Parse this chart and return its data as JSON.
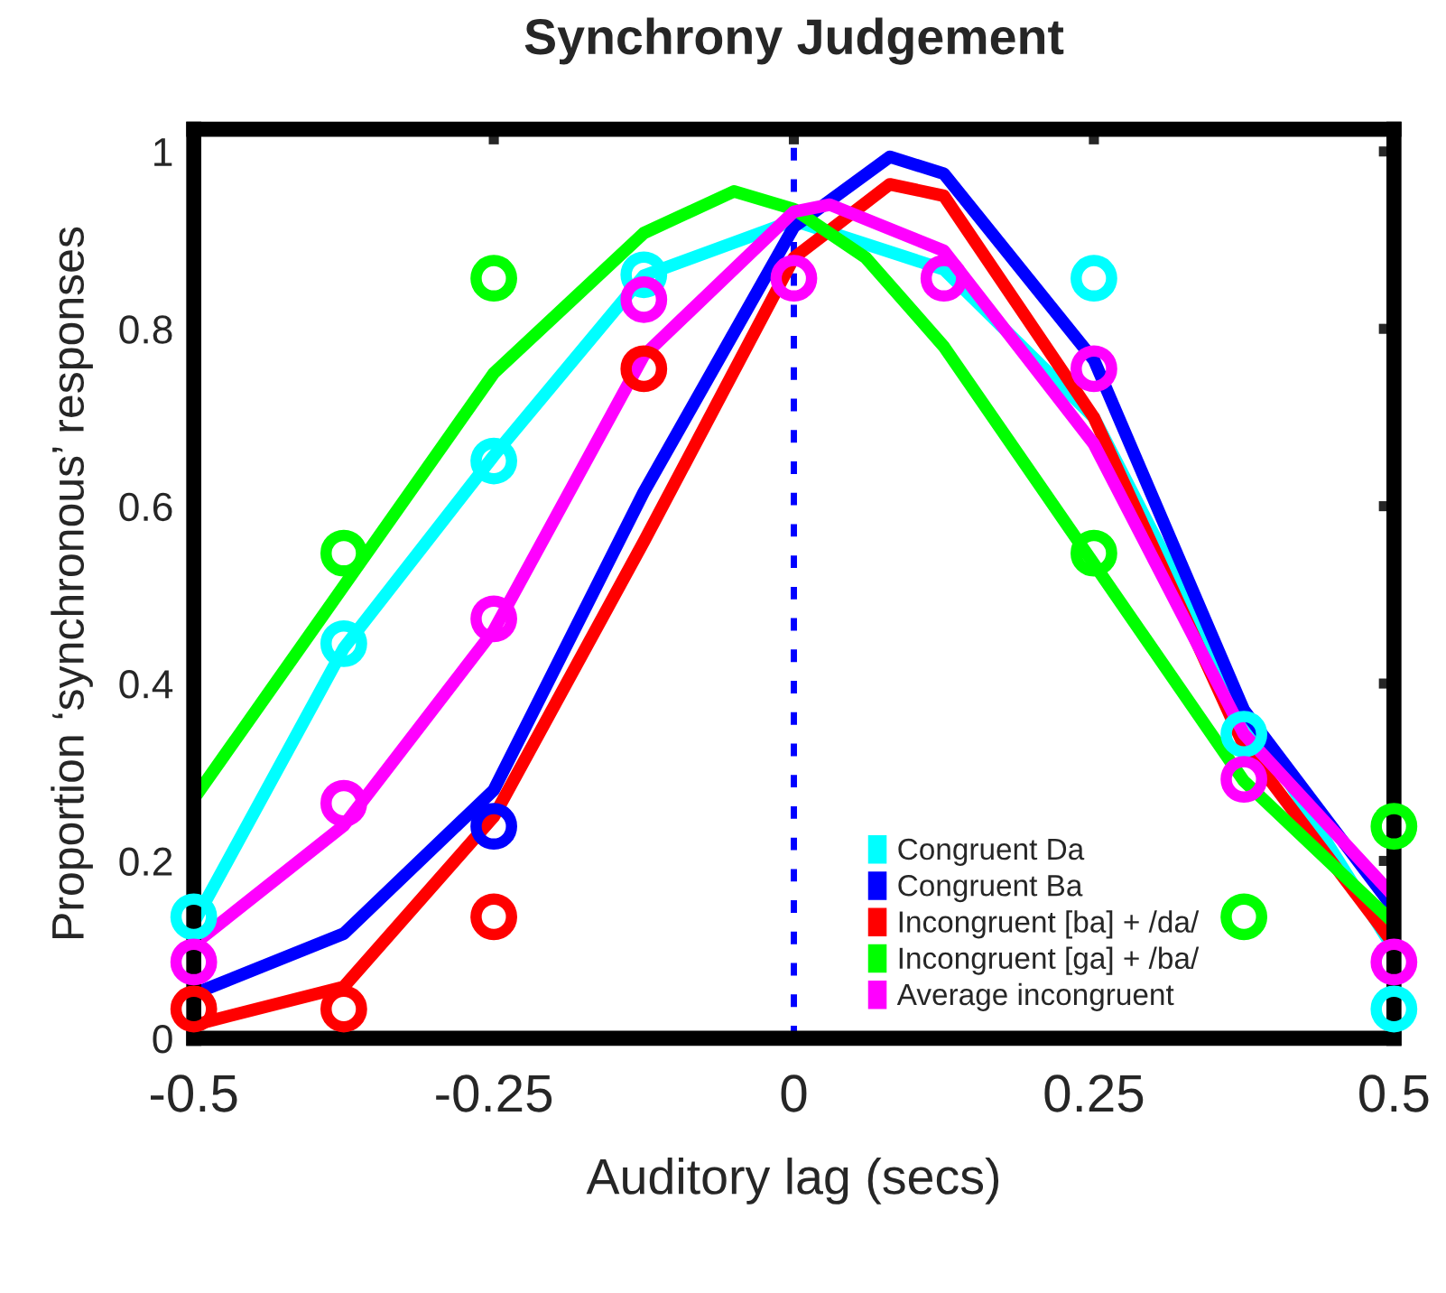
{
  "chart_data": {
    "type": "line",
    "title": "Synchrony Judgement",
    "xlabel": "Auditory lag (secs)",
    "ylabel": "Proportion ‘synchronous’ responses",
    "xlim": [
      -0.5,
      0.5
    ],
    "ylim": [
      0,
      1.025
    ],
    "xticks": [
      {
        "value": -0.5,
        "label": "-0.5"
      },
      {
        "value": -0.25,
        "label": "-0.25"
      },
      0,
      0.25,
      0.5
    ],
    "yticks": [
      0,
      0.2,
      0.4,
      0.6,
      0.8,
      1
    ],
    "grid": false,
    "legend": "bottom right",
    "ref_lines": [
      {
        "axis": "x",
        "value": 0,
        "color": "#0000ff",
        "line_style": "dashed"
      }
    ],
    "series": [
      {
        "type": "scatter",
        "marker": "circle",
        "color": "#00ffff",
        "x": [
          -0.5,
          -0.375,
          -0.25,
          -0.125,
          0.25,
          0.375,
          0.5
        ],
        "values": [
          0.137,
          0.445,
          0.651,
          0.861,
          0.857,
          0.343,
          0.033
        ]
      },
      {
        "type": "scatter",
        "marker": "circle",
        "color": "#0000ff",
        "x": [
          -0.25
        ],
        "values": [
          0.239
        ]
      },
      {
        "type": "scatter",
        "marker": "circle",
        "color": "#ff0000",
        "x": [
          -0.5,
          -0.375,
          -0.25,
          -0.125
        ],
        "values": [
          0.033,
          0.033,
          0.137,
          0.755
        ]
      },
      {
        "type": "scatter",
        "marker": "circle",
        "color": "#00ff00",
        "x": [
          -0.375,
          -0.25,
          0.25,
          0.375,
          0.5
        ],
        "values": [
          0.547,
          0.857,
          0.547,
          0.137,
          0.239
        ]
      },
      {
        "type": "scatter",
        "marker": "circle",
        "color": "#ff00ff",
        "x": [
          -0.5,
          -0.375,
          -0.25,
          -0.125,
          0,
          0.125,
          0.25,
          0.375,
          0.5
        ],
        "values": [
          0.086,
          0.265,
          0.473,
          0.833,
          0.857,
          0.857,
          0.755,
          0.292,
          0.086
        ]
      },
      {
        "name": "Congruent Da",
        "color": "#00ffff",
        "x": [
          -0.5,
          -0.375,
          -0.25,
          -0.125,
          0,
          0.125,
          0.25,
          0.375,
          0.5
        ],
        "values": [
          0.13,
          0.44,
          0.657,
          0.86,
          0.922,
          0.867,
          0.7,
          0.37,
          0.1
        ]
      },
      {
        "name": "Congruent Ba",
        "color": "#0000ff",
        "x": [
          -0.5,
          -0.375,
          -0.25,
          -0.125,
          0,
          0.08,
          0.125,
          0.25,
          0.375,
          0.5
        ],
        "values": [
          0.05,
          0.118,
          0.28,
          0.616,
          0.915,
          0.994,
          0.975,
          0.765,
          0.37,
          0.146
        ]
      },
      {
        "name": "Incongruent [ba] + /da/",
        "color": "#ff0000",
        "x": [
          -0.5,
          -0.375,
          -0.25,
          -0.125,
          0,
          0.08,
          0.125,
          0.25,
          0.375,
          0.5
        ],
        "values": [
          0.015,
          0.058,
          0.25,
          0.56,
          0.88,
          0.963,
          0.95,
          0.7,
          0.33,
          0.106
        ]
      },
      {
        "name": "Incongruent [ga] + /ba/",
        "color": "#00ff00",
        "x": [
          -0.5,
          -0.375,
          -0.25,
          -0.125,
          -0.05,
          0,
          0.06,
          0.125,
          0.25,
          0.375,
          0.5
        ],
        "values": [
          0.27,
          0.51,
          0.75,
          0.908,
          0.955,
          0.935,
          0.88,
          0.78,
          0.535,
          0.29,
          0.13
        ]
      },
      {
        "name": "Average incongruent",
        "color": "#ff00ff",
        "x": [
          -0.5,
          -0.375,
          -0.25,
          -0.125,
          0,
          0.03,
          0.125,
          0.25,
          0.375,
          0.5
        ],
        "values": [
          0.106,
          0.24,
          0.46,
          0.77,
          0.932,
          0.94,
          0.888,
          0.67,
          0.343,
          0.16
        ]
      }
    ]
  }
}
